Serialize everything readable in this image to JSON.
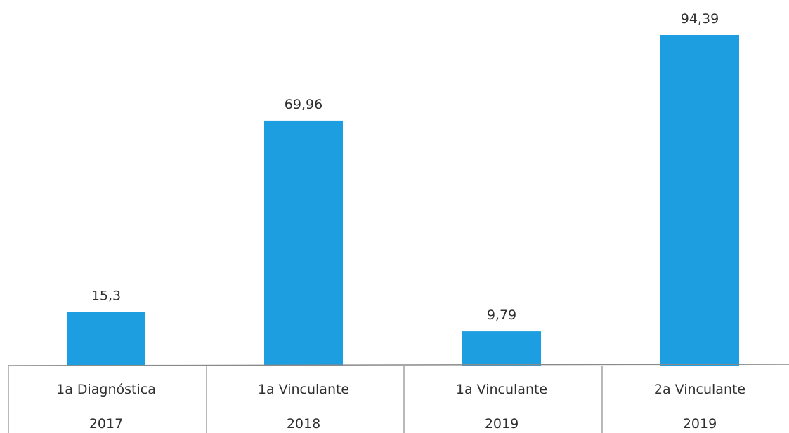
{
  "chart_data": {
    "type": "bar",
    "categories": [
      {
        "label": "1a Diagnóstica",
        "year": "2017"
      },
      {
        "label": "1a Vinculante",
        "year": "2018"
      },
      {
        "label": "1a Vinculante",
        "year": "2019"
      },
      {
        "label": "2a Vinculante",
        "year": "2019"
      }
    ],
    "values": [
      15.3,
      69.96,
      9.79,
      94.39
    ],
    "value_labels": [
      "15,3",
      "69,96",
      "9,79",
      "94,39"
    ],
    "bar_color": "#1c9ee0",
    "ylim": [
      0,
      100
    ],
    "grid": false,
    "legend": "none"
  }
}
